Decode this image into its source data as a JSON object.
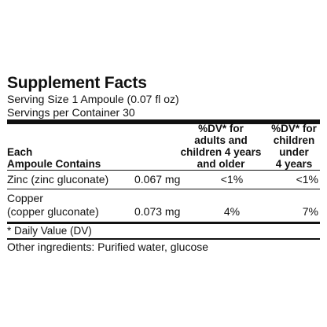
{
  "title": "Supplement Facts",
  "serving_size": "Serving Size 1 Ampoule (0.07 fl oz)",
  "servings_per_container": "Servings per Container 30",
  "headers": {
    "col1_line1": "Each",
    "col1_line2": "Ampoule Contains",
    "col3_line1": "%DV* for",
    "col3_line2": "adults and",
    "col3_line3": "children 4 years",
    "col3_line4": "and older",
    "col4_line1": "%DV* for",
    "col4_line2": "children",
    "col4_line3": "under",
    "col4_line4": "4 years"
  },
  "rows": [
    {
      "name_line1": "Zinc (zinc gluconate)",
      "amount": "0.067 mg",
      "dv_adult": "<1%",
      "dv_child": "<1%"
    },
    {
      "name_line1": "Copper",
      "name_line2": "(copper gluconate)",
      "amount": "0.073 mg",
      "dv_adult": "4%",
      "dv_child": "7%"
    }
  ],
  "footnote": "* Daily Value (DV)",
  "other_ingredients": "Other ingredients: Purified water, glucose"
}
